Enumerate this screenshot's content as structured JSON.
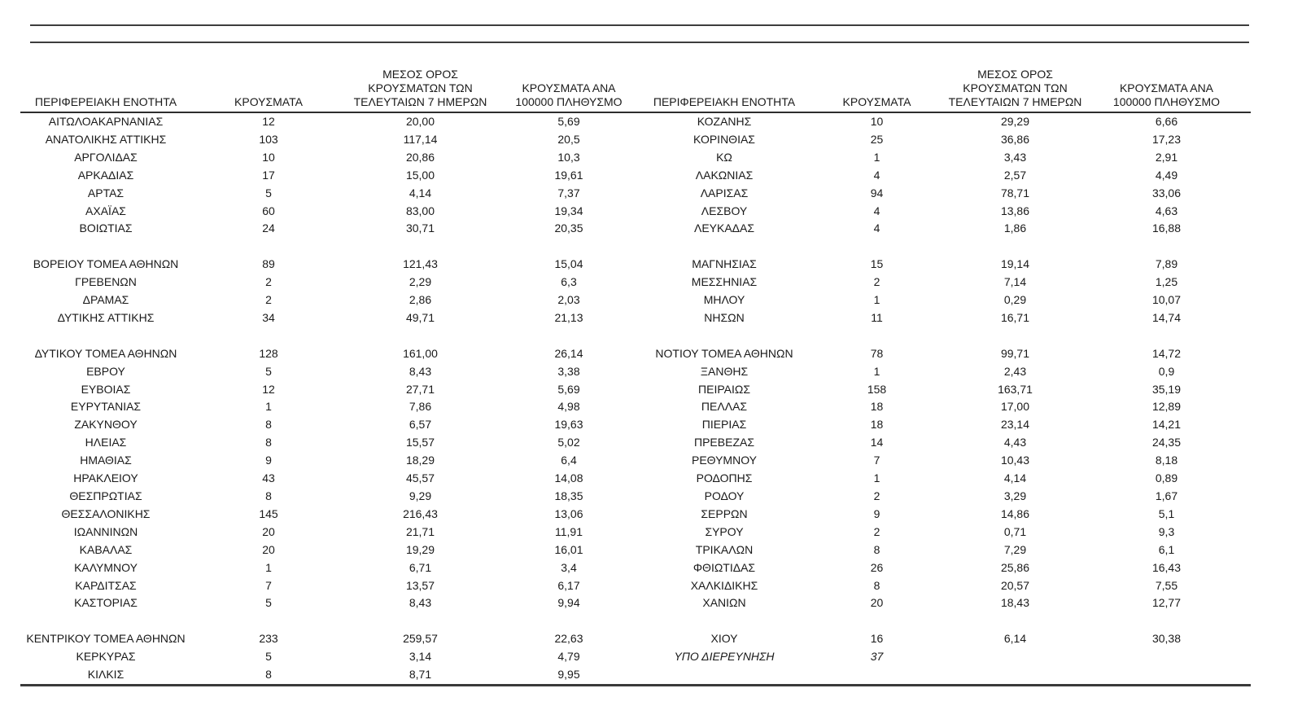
{
  "document": {
    "headers": {
      "region": "ΠΕΡΙΦΕΡΕΙΑΚΗ ΕΝΟΤΗΤΑ",
      "cases": "ΚΡΟΥΣΜΑΤΑ",
      "avg7_lines": [
        "ΜΕΣΟΣ ΟΡΟΣ",
        "ΚΡΟΥΣΜΑΤΩΝ ΤΩΝ",
        "ΤΕΛΕΥΤΑΙΩΝ 7 ΗΜΕΡΩΝ"
      ],
      "per100k_lines": [
        "ΚΡΟΥΣΜΑΤΑ ΑΝΑ",
        "100000 ΠΛΗΘΥΣΜΟ"
      ]
    },
    "left_rows": [
      {
        "cells": [
          "ΑΙΤΩΛΟΑΚΑΡΝΑΝΙΑΣ",
          "12",
          "20,00",
          "5,69"
        ]
      },
      {
        "cells": [
          "ΑΝΑΤΟΛΙΚΗΣ ΑΤΤΙΚΗΣ",
          "103",
          "117,14",
          "20,5"
        ]
      },
      {
        "cells": [
          "ΑΡΓΟΛΙΔΑΣ",
          "10",
          "20,86",
          "10,3"
        ]
      },
      {
        "cells": [
          "ΑΡΚΑΔΙΑΣ",
          "17",
          "15,00",
          "19,61"
        ]
      },
      {
        "cells": [
          "ΑΡΤΑΣ",
          "5",
          "4,14",
          "7,37"
        ]
      },
      {
        "cells": [
          "ΑΧΑΪΑΣ",
          "60",
          "83,00",
          "19,34"
        ]
      },
      {
        "cells": [
          "ΒΟΙΩΤΙΑΣ",
          "24",
          "30,71",
          "20,35"
        ]
      },
      {
        "cells": [
          "",
          "",
          "",
          ""
        ]
      },
      {
        "cells": [
          "ΒΟΡΕΙΟΥ ΤΟΜΕΑ ΑΘΗΝΩΝ",
          "89",
          "121,43",
          "15,04"
        ]
      },
      {
        "cells": [
          "ΓΡΕΒΕΝΩΝ",
          "2",
          "2,29",
          "6,3"
        ]
      },
      {
        "cells": [
          "ΔΡΑΜΑΣ",
          "2",
          "2,86",
          "2,03"
        ]
      },
      {
        "cells": [
          "ΔΥΤΙΚΗΣ ΑΤΤΙΚΗΣ",
          "34",
          "49,71",
          "21,13"
        ]
      },
      {
        "cells": [
          "",
          "",
          "",
          ""
        ]
      },
      {
        "cells": [
          "ΔΥΤΙΚΟΥ ΤΟΜΕΑ ΑΘΗΝΩΝ",
          "128",
          "161,00",
          "26,14"
        ]
      },
      {
        "cells": [
          "ΕΒΡΟΥ",
          "5",
          "8,43",
          "3,38"
        ]
      },
      {
        "cells": [
          "ΕΥΒΟΙΑΣ",
          "12",
          "27,71",
          "5,69"
        ]
      },
      {
        "cells": [
          "ΕΥΡΥΤΑΝΙΑΣ",
          "1",
          "7,86",
          "4,98"
        ]
      },
      {
        "cells": [
          "ΖΑΚΥΝΘΟΥ",
          "8",
          "6,57",
          "19,63"
        ]
      },
      {
        "cells": [
          "ΗΛΕΙΑΣ",
          "8",
          "15,57",
          "5,02"
        ]
      },
      {
        "cells": [
          "ΗΜΑΘΙΑΣ",
          "9",
          "18,29",
          "6,4"
        ]
      },
      {
        "cells": [
          "ΗΡΑΚΛΕΙΟΥ",
          "43",
          "45,57",
          "14,08"
        ]
      },
      {
        "cells": [
          "ΘΕΣΠΡΩΤΙΑΣ",
          "8",
          "9,29",
          "18,35"
        ]
      },
      {
        "cells": [
          "ΘΕΣΣΑΛΟΝΙΚΗΣ",
          "145",
          "216,43",
          "13,06"
        ]
      },
      {
        "cells": [
          "ΙΩΑΝΝΙΝΩΝ",
          "20",
          "21,71",
          "11,91"
        ]
      },
      {
        "cells": [
          "ΚΑΒΑΛΑΣ",
          "20",
          "19,29",
          "16,01"
        ]
      },
      {
        "cells": [
          "ΚΑΛΥΜΝΟΥ",
          "1",
          "6,71",
          "3,4"
        ]
      },
      {
        "cells": [
          "ΚΑΡΔΙΤΣΑΣ",
          "7",
          "13,57",
          "6,17"
        ]
      },
      {
        "cells": [
          "ΚΑΣΤΟΡΙΑΣ",
          "5",
          "8,43",
          "9,94"
        ]
      },
      {
        "cells": [
          "",
          "",
          "",
          ""
        ]
      },
      {
        "cells": [
          "ΚΕΝΤΡΙΚΟΥ ΤΟΜΕΑ ΑΘΗΝΩΝ",
          "233",
          "259,57",
          "22,63"
        ]
      },
      {
        "cells": [
          "ΚΕΡΚΥΡΑΣ",
          "5",
          "3,14",
          "4,79"
        ]
      },
      {
        "cells": [
          "ΚΙΛΚΙΣ",
          "8",
          "8,71",
          "9,95"
        ]
      }
    ],
    "right_rows": [
      {
        "cells": [
          "ΚΟΖΑΝΗΣ",
          "10",
          "29,29",
          "6,66"
        ]
      },
      {
        "cells": [
          "ΚΟΡΙΝΘΙΑΣ",
          "25",
          "36,86",
          "17,23"
        ]
      },
      {
        "cells": [
          "ΚΩ",
          "1",
          "3,43",
          "2,91"
        ]
      },
      {
        "cells": [
          "ΛΑΚΩΝΙΑΣ",
          "4",
          "2,57",
          "4,49"
        ]
      },
      {
        "cells": [
          "ΛΑΡΙΣΑΣ",
          "94",
          "78,71",
          "33,06"
        ]
      },
      {
        "cells": [
          "ΛΕΣΒΟΥ",
          "4",
          "13,86",
          "4,63"
        ]
      },
      {
        "cells": [
          "ΛΕΥΚΑΔΑΣ",
          "4",
          "1,86",
          "16,88"
        ]
      },
      {
        "cells": [
          "",
          "",
          "",
          ""
        ]
      },
      {
        "cells": [
          "ΜΑΓΝΗΣΙΑΣ",
          "15",
          "19,14",
          "7,89"
        ]
      },
      {
        "cells": [
          "ΜΕΣΣΗΝΙΑΣ",
          "2",
          "7,14",
          "1,25"
        ]
      },
      {
        "cells": [
          "ΜΗΛΟΥ",
          "1",
          "0,29",
          "10,07"
        ]
      },
      {
        "cells": [
          "ΝΗΣΩΝ",
          "11",
          "16,71",
          "14,74"
        ]
      },
      {
        "cells": [
          "",
          "",
          "",
          ""
        ]
      },
      {
        "cells": [
          "ΝΟΤΙΟΥ ΤΟΜΕΑ ΑΘΗΝΩΝ",
          "78",
          "99,71",
          "14,72"
        ]
      },
      {
        "cells": [
          "ΞΑΝΘΗΣ",
          "1",
          "2,43",
          "0,9"
        ]
      },
      {
        "cells": [
          "ΠΕΙΡΑΙΩΣ",
          "158",
          "163,71",
          "35,19"
        ]
      },
      {
        "cells": [
          "ΠΕΛΛΑΣ",
          "18",
          "17,00",
          "12,89"
        ]
      },
      {
        "cells": [
          "ΠΙΕΡΙΑΣ",
          "18",
          "23,14",
          "14,21"
        ]
      },
      {
        "cells": [
          "ΠΡΕΒΕΖΑΣ",
          "14",
          "4,43",
          "24,35"
        ]
      },
      {
        "cells": [
          "ΡΕΘΥΜΝΟΥ",
          "7",
          "10,43",
          "8,18"
        ]
      },
      {
        "cells": [
          "ΡΟΔΟΠΗΣ",
          "1",
          "4,14",
          "0,89"
        ]
      },
      {
        "cells": [
          "ΡΟΔΟΥ",
          "2",
          "3,29",
          "1,67"
        ]
      },
      {
        "cells": [
          "ΣΕΡΡΩΝ",
          "9",
          "14,86",
          "5,1"
        ]
      },
      {
        "cells": [
          "ΣΥΡΟΥ",
          "2",
          "0,71",
          "9,3"
        ]
      },
      {
        "cells": [
          "ΤΡΙΚΑΛΩΝ",
          "8",
          "7,29",
          "6,1"
        ]
      },
      {
        "cells": [
          "ΦΘΙΩΤΙΔΑΣ",
          "26",
          "25,86",
          "16,43"
        ]
      },
      {
        "cells": [
          "ΧΑΛΚΙΔΙΚΗΣ",
          "8",
          "20,57",
          "7,55"
        ]
      },
      {
        "cells": [
          "ΧΑΝΙΩΝ",
          "20",
          "18,43",
          "12,77"
        ]
      },
      {
        "cells": [
          "",
          "",
          "",
          ""
        ]
      },
      {
        "cells": [
          "ΧΙΟΥ",
          "16",
          "6,14",
          "30,38"
        ]
      },
      {
        "cells": [
          "ΥΠΟ ΔΙΕΡΕΥΝΗΣΗ",
          "37",
          "",
          ""
        ],
        "italic": true
      },
      {
        "cells": [
          "",
          "",
          "",
          ""
        ]
      }
    ]
  }
}
